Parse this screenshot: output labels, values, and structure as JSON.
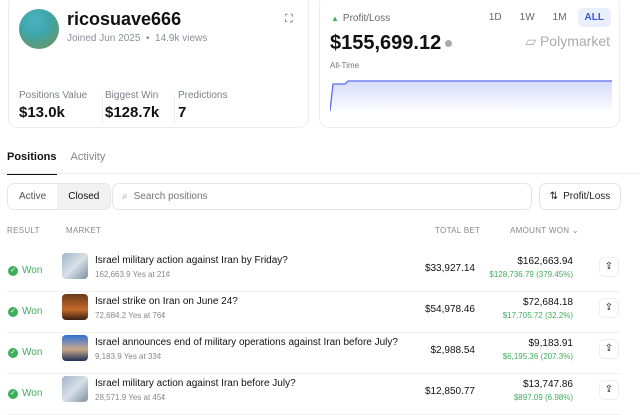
{
  "profile": {
    "username": "ricosuave666",
    "joined": "Joined Jun 2025",
    "views": "14.9k views",
    "stats": [
      {
        "label": "Positions Value",
        "value": "$13.0k"
      },
      {
        "label": "Biggest Win",
        "value": "$128.7k"
      },
      {
        "label": "Predictions",
        "value": "7"
      }
    ]
  },
  "pnl": {
    "label": "Profit/Loss",
    "value": "$155,699.12",
    "period": "All-Time",
    "brand": "Polymarket",
    "ranges": [
      "1D",
      "1W",
      "1M",
      "ALL"
    ],
    "selected_range": "ALL",
    "accent": "#5b6cf0",
    "up_color": "#3fae5c",
    "chart_data": {
      "type": "area",
      "values": [
        0,
        140000,
        140000,
        155699,
        155699,
        155699
      ]
    }
  },
  "tabs": [
    "Positions",
    "Activity"
  ],
  "filters": {
    "segments": [
      "Active",
      "Closed"
    ],
    "selected": "Closed",
    "search_placeholder": "Search positions",
    "sort_label": "Profit/Loss"
  },
  "table": {
    "headers": {
      "result": "RESULT",
      "market": "MARKET",
      "total_bet": "TOTAL BET",
      "amount_won": "AMOUNT WON"
    },
    "rows": [
      {
        "result": "Won",
        "title": "Israel military action against Iran by Friday?",
        "sub": "162,663.9 Yes at 21¢",
        "bet": "$33,927.14",
        "won": "$162,663.94",
        "gain": "$128,736.79 (379.45%)"
      },
      {
        "result": "Won",
        "title": "Israel strike on Iran on June 24?",
        "sub": "72,684.2 Yes at 76¢",
        "bet": "$54,978.46",
        "won": "$72,684.18",
        "gain": "$17,705.72 (32.2%)"
      },
      {
        "result": "Won",
        "title": "Israel announces end of military operations against Iran before July?",
        "sub": "9,183.9 Yes at 33¢",
        "bet": "$2,988.54",
        "won": "$9,183.91",
        "gain": "$6,195.36 (207.3%)"
      },
      {
        "result": "Won",
        "title": "Israel military action against Iran before July?",
        "sub": "28,571.9 Yes at 45¢",
        "bet": "$12,850.77",
        "won": "$13,747.86",
        "gain": "$897.09 (6.98%)"
      }
    ]
  }
}
